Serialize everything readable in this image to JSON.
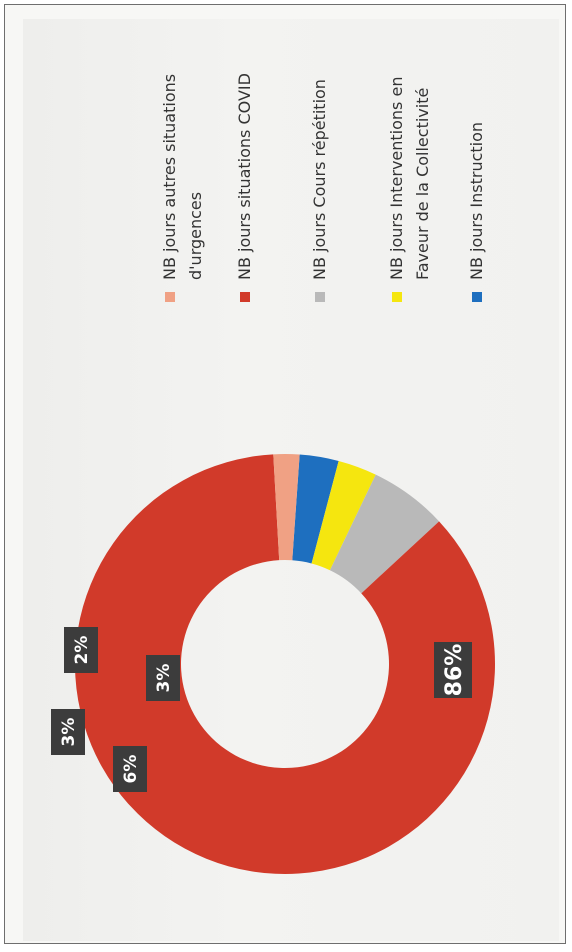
{
  "chart_data": {
    "type": "pie",
    "donut": true,
    "orientation": "rotated 90° counter-clockwise",
    "title": "",
    "categories": [
      "NB jours Instruction",
      "NB jours Interventions en Faveur de la Collectivité",
      "NB jours Cours répétition",
      "NB jours situations COVID",
      "NB jours autres situations d'urgences"
    ],
    "legend_lines": [
      [
        "NB jours Instruction"
      ],
      [
        "NB jours Interventions en",
        "Faveur de la Collectivité"
      ],
      [
        "NB jours Cours répétition"
      ],
      [
        "NB jours situations COVID"
      ],
      [
        "NB jours autres situations",
        "d'urgences"
      ]
    ],
    "values": [
      3,
      3,
      6,
      86,
      2
    ],
    "data_labels": [
      "3%",
      "3%",
      "6%",
      "86%",
      "2%"
    ],
    "colors": [
      "#1e6fbf",
      "#f5e60f",
      "#b9b9b9",
      "#d13a2a",
      "#f0a184"
    ],
    "legend_position": "right"
  }
}
